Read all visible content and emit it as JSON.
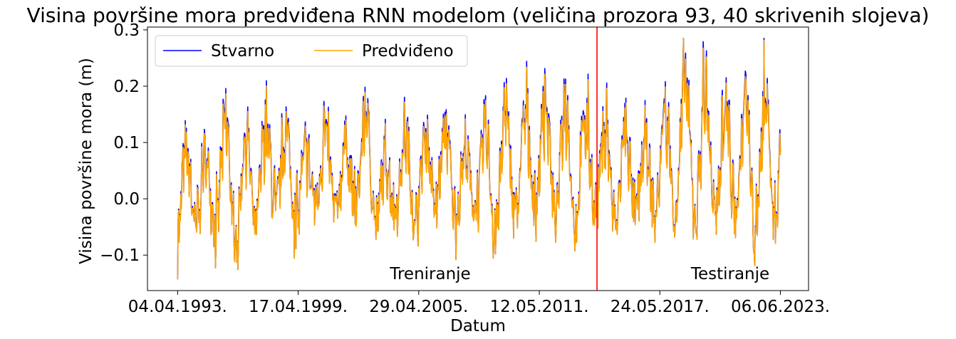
{
  "chart_data": {
    "type": "line",
    "title": "Visina površine mora predviđena RNN modelom (veličina prozora 93, 40 skrivenih slojeva)",
    "xlabel": "Datum",
    "ylabel": "Visina površine mora (m)",
    "x_range": [
      "1993-04-04",
      "2023-06-06"
    ],
    "xlim": [
      "1991-10-01",
      "2024-11-01"
    ],
    "ylim": [
      -0.163,
      0.305
    ],
    "x_ticks": [
      "04.04.1993.",
      "17.04.1999.",
      "29.04.2005.",
      "12.05.2011.",
      "24.05.2017.",
      "06.06.2023."
    ],
    "y_ticks": [
      "−0.1",
      "0.0",
      "0.1",
      "0.2",
      "0.3"
    ],
    "y_tick_values": [
      -0.1,
      0.0,
      0.1,
      0.2,
      0.3
    ],
    "grid": false,
    "legend": {
      "placement": "top-left",
      "columns": 2
    },
    "split_date": "2014-04-01",
    "split_color": "#ff0000",
    "regions": [
      {
        "label": "Treniranje",
        "color": "#000000"
      },
      {
        "label": "Testiranje",
        "color": "#ff0000"
      }
    ],
    "series": [
      {
        "name": "Stvarno",
        "color": "#0000ff",
        "x": [
          "1993-04-04",
          "1993-09-01",
          "1994-03-01",
          "1994-09-01",
          "1995-03-01",
          "1995-09-01",
          "1996-03-01",
          "1996-09-01",
          "1997-03-01",
          "1997-09-01",
          "1998-03-01",
          "1998-09-01",
          "1999-03-01",
          "1999-09-01",
          "2000-03-01",
          "2000-09-01",
          "2001-03-01",
          "2001-09-01",
          "2002-03-01",
          "2002-09-01",
          "2003-03-01",
          "2003-09-01",
          "2004-03-01",
          "2004-09-01",
          "2005-03-01",
          "2005-09-01",
          "2006-03-01",
          "2006-09-01",
          "2007-03-01",
          "2007-09-01",
          "2008-03-01",
          "2008-09-01",
          "2009-03-01",
          "2009-09-01",
          "2010-03-01",
          "2010-09-01",
          "2011-03-01",
          "2011-09-01",
          "2012-03-01",
          "2012-09-01",
          "2013-03-01",
          "2013-09-01",
          "2014-03-01",
          "2014-09-01",
          "2015-03-01",
          "2015-09-01",
          "2016-03-01",
          "2016-09-01",
          "2017-03-01",
          "2017-09-01",
          "2018-03-01",
          "2018-09-01",
          "2019-03-01",
          "2019-09-01",
          "2020-03-01",
          "2020-09-01",
          "2021-03-01",
          "2021-09-01",
          "2022-03-01",
          "2022-09-01",
          "2023-03-01",
          "2023-06-06"
        ],
        "y": [
          -0.11,
          0.1,
          -0.09,
          0.09,
          -0.08,
          0.18,
          -0.14,
          0.15,
          -0.08,
          0.17,
          -0.05,
          0.16,
          -0.08,
          0.1,
          -0.03,
          0.15,
          -0.06,
          0.12,
          -0.04,
          0.21,
          -0.07,
          0.08,
          -0.05,
          0.14,
          -0.09,
          0.15,
          -0.04,
          0.16,
          -0.06,
          0.1,
          -0.05,
          0.16,
          -0.11,
          0.19,
          -0.06,
          0.19,
          -0.03,
          0.24,
          -0.06,
          0.24,
          -0.08,
          0.2,
          -0.04,
          0.18,
          -0.08,
          0.15,
          -0.05,
          0.12,
          -0.06,
          0.2,
          -0.05,
          0.28,
          -0.06,
          0.26,
          -0.08,
          0.24,
          -0.07,
          0.22,
          -0.1,
          0.26,
          -0.08,
          0.09
        ]
      },
      {
        "name": "Predviđeno",
        "color": "#ffa500",
        "x": [
          "1993-04-04",
          "1993-09-01",
          "1994-03-01",
          "1994-09-01",
          "1995-03-01",
          "1995-09-01",
          "1996-03-01",
          "1996-09-01",
          "1997-03-01",
          "1997-09-01",
          "1998-03-01",
          "1998-09-01",
          "1999-03-01",
          "1999-09-01",
          "2000-03-01",
          "2000-09-01",
          "2001-03-01",
          "2001-09-01",
          "2002-03-01",
          "2002-09-01",
          "2003-03-01",
          "2003-09-01",
          "2004-03-01",
          "2004-09-01",
          "2005-03-01",
          "2005-09-01",
          "2006-03-01",
          "2006-09-01",
          "2007-03-01",
          "2007-09-01",
          "2008-03-01",
          "2008-09-01",
          "2009-03-01",
          "2009-09-01",
          "2010-03-01",
          "2010-09-01",
          "2011-03-01",
          "2011-09-01",
          "2012-03-01",
          "2012-09-01",
          "2013-03-01",
          "2013-09-01",
          "2014-03-01",
          "2014-09-01",
          "2015-03-01",
          "2015-09-01",
          "2016-03-01",
          "2016-09-01",
          "2017-03-01",
          "2017-09-01",
          "2018-03-01",
          "2018-09-01",
          "2019-03-01",
          "2019-09-01",
          "2020-03-01",
          "2020-09-01",
          "2021-03-01",
          "2021-09-01",
          "2022-03-01",
          "2022-09-01",
          "2023-03-01",
          "2023-06-06"
        ],
        "y": [
          -0.105,
          0.095,
          -0.085,
          0.085,
          -0.075,
          0.175,
          -0.135,
          0.145,
          -0.075,
          0.165,
          -0.045,
          0.155,
          -0.075,
          0.095,
          -0.028,
          0.145,
          -0.055,
          0.115,
          -0.038,
          0.205,
          -0.065,
          0.078,
          -0.048,
          0.135,
          -0.085,
          0.145,
          -0.038,
          0.155,
          -0.055,
          0.095,
          -0.048,
          0.155,
          -0.105,
          0.185,
          -0.055,
          0.185,
          -0.028,
          0.235,
          -0.055,
          0.235,
          -0.075,
          0.195,
          -0.038,
          0.175,
          -0.075,
          0.145,
          -0.048,
          0.115,
          -0.055,
          0.195,
          -0.048,
          0.27,
          -0.055,
          0.25,
          -0.075,
          0.235,
          -0.065,
          0.215,
          -0.095,
          0.25,
          -0.075,
          0.085
        ]
      }
    ]
  }
}
